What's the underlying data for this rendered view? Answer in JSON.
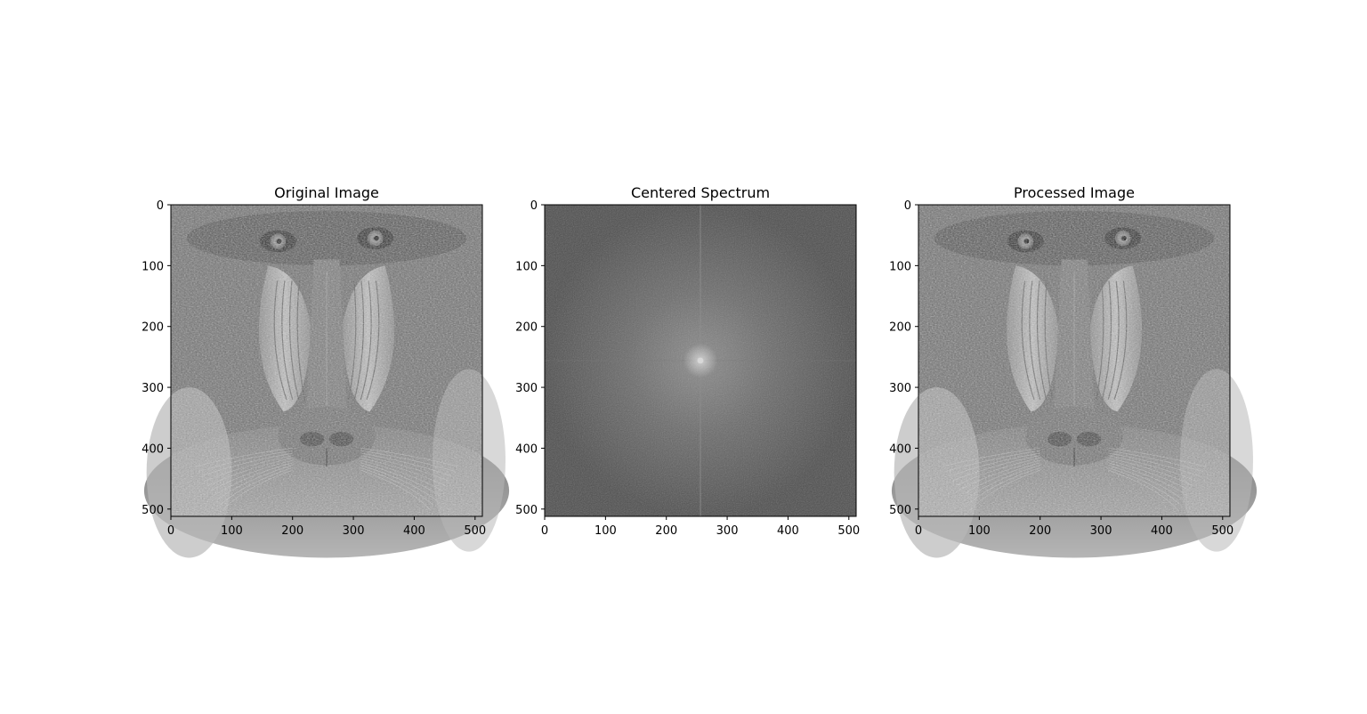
{
  "chart_data": [
    {
      "type": "heatmap",
      "title": "Original Image",
      "content": "mandrill-photo-grayscale",
      "xlim": [
        0,
        512
      ],
      "ylim": [
        512,
        0
      ],
      "xticks": [
        0,
        100,
        200,
        300,
        400,
        500
      ],
      "yticks": [
        0,
        100,
        200,
        300,
        400,
        500
      ],
      "colormap": "gray",
      "grid": false
    },
    {
      "type": "heatmap",
      "title": "Centered Spectrum",
      "content": "log-magnitude-fft-spectrum",
      "xlim": [
        0,
        512
      ],
      "ylim": [
        512,
        0
      ],
      "xticks": [
        0,
        100,
        200,
        300,
        400,
        500
      ],
      "yticks": [
        0,
        100,
        200,
        300,
        400,
        500
      ],
      "colormap": "gray",
      "grid": false,
      "bright_center": [
        256,
        256
      ]
    },
    {
      "type": "heatmap",
      "title": "Processed Image",
      "content": "mandrill-photo-grayscale",
      "xlim": [
        0,
        512
      ],
      "ylim": [
        512,
        0
      ],
      "xticks": [
        0,
        100,
        200,
        300,
        400,
        500
      ],
      "yticks": [
        0,
        100,
        200,
        300,
        400,
        500
      ],
      "colormap": "gray",
      "grid": false
    }
  ],
  "colors": {
    "fur_base": "#6e6e6e",
    "fur_light": "#b8b8b8",
    "cheek": "#a9a9a9",
    "nose": "#7a7a7a",
    "spectrum_bg": "#5c5c5c",
    "spectrum_center": "#d8d8d8",
    "axis": "#000000"
  }
}
